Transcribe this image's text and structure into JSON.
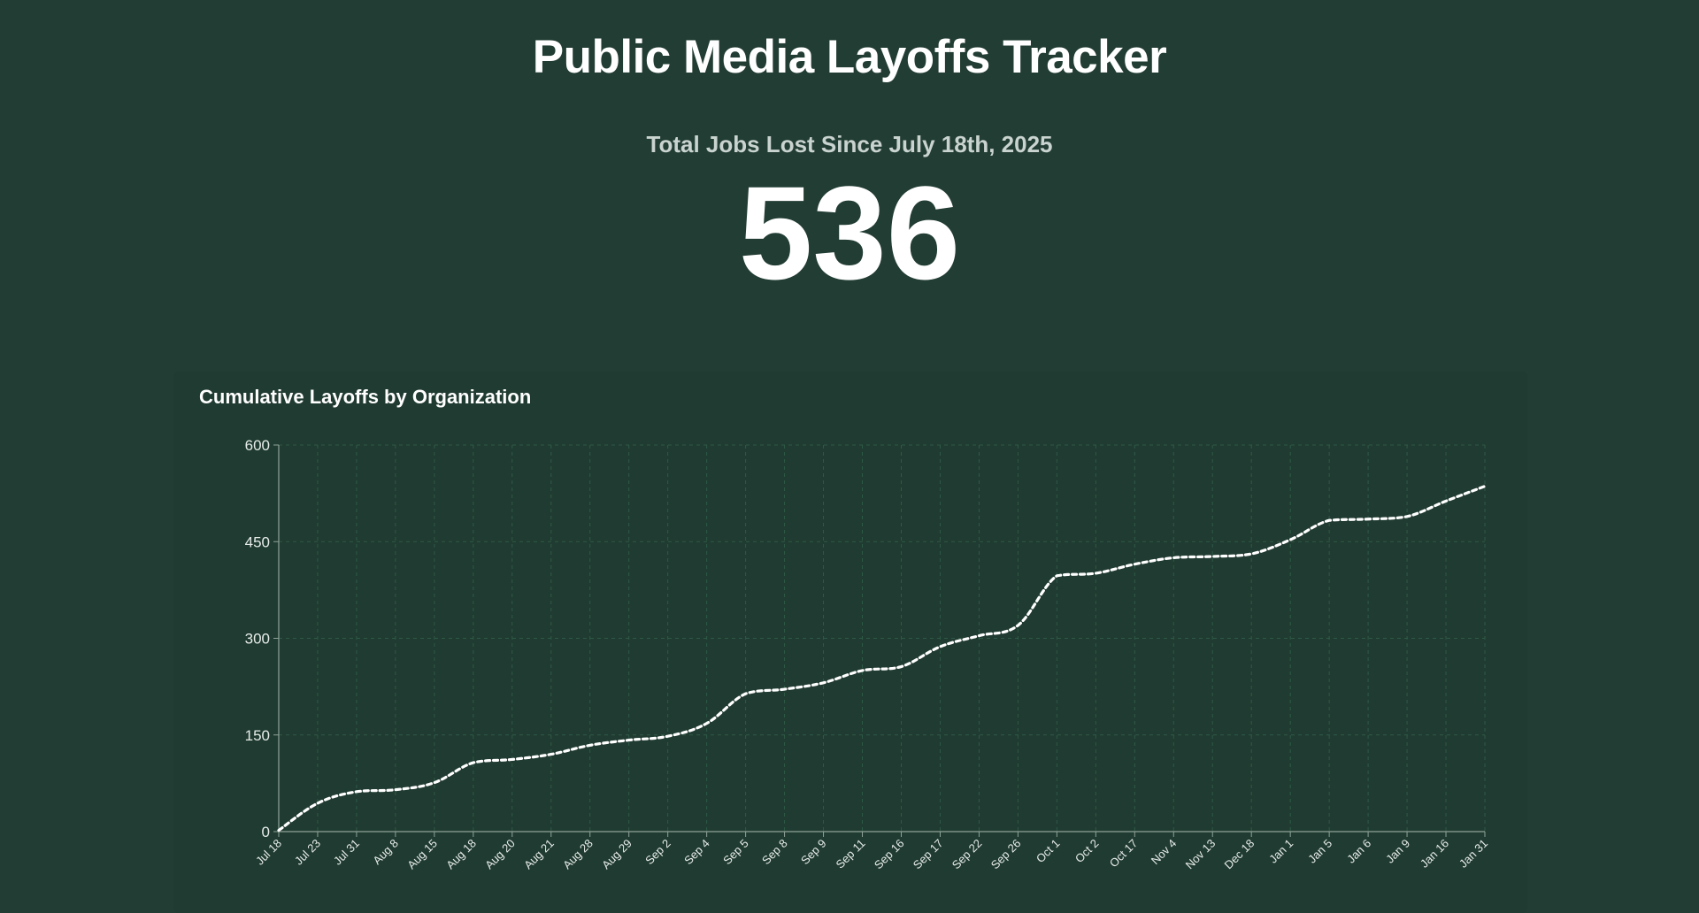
{
  "header": {
    "title": "Public Media Layoffs Tracker",
    "subtitle": "Total Jobs Lost Since July 18th, 2025",
    "total": "536"
  },
  "chart_data": {
    "type": "line",
    "title": "Cumulative Layoffs by Organization",
    "xlabel": "",
    "ylabel": "",
    "categories": [
      "Jul 18",
      "Jul 23",
      "Jul 31",
      "Aug 8",
      "Aug 15",
      "Aug 18",
      "Aug 20",
      "Aug 21",
      "Aug 28",
      "Aug 29",
      "Sep 2",
      "Sep 4",
      "Sep 5",
      "Sep 8",
      "Sep 9",
      "Sep 11",
      "Sep 16",
      "Sep 17",
      "Sep 22",
      "Sep 26",
      "Oct 1",
      "Oct 2",
      "Oct 17",
      "Nov 4",
      "Nov 13",
      "Dec 18",
      "Jan 1",
      "Jan 5",
      "Jan 6",
      "Jan 9",
      "Jan 16",
      "Jan 31"
    ],
    "series": [
      {
        "values": [
          2,
          44,
          62,
          65,
          76,
          107,
          112,
          120,
          134,
          142,
          148,
          168,
          214,
          221,
          231,
          250,
          256,
          287,
          304,
          320,
          397,
          401,
          415,
          425,
          427,
          431,
          453,
          483,
          485,
          489,
          513,
          536
        ]
      }
    ],
    "ylim": [
      0,
      600
    ],
    "yticks": [
      0,
      150,
      300,
      450,
      600
    ],
    "grid": true,
    "line_style": "dotted",
    "colors": {
      "line": "#ffffff",
      "grid": "#2f5a47",
      "axis": "#8fa39a",
      "background": "#223d33"
    }
  }
}
